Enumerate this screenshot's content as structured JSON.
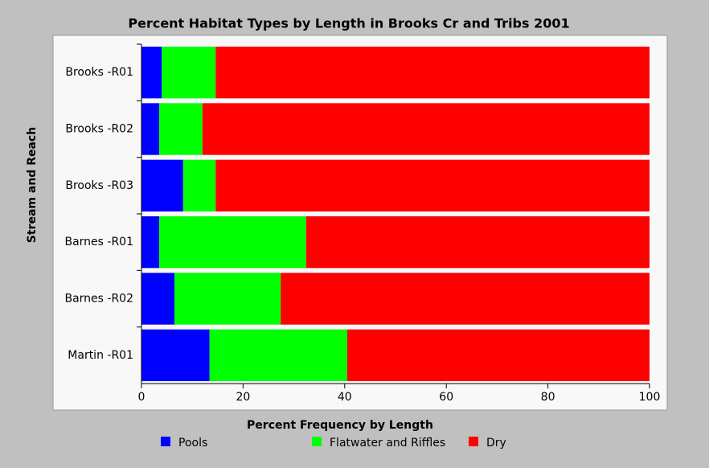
{
  "chart_data": {
    "type": "stacked-barh",
    "title": "Percent Habitat Types by Length in Brooks Cr and Tribs 2001",
    "x_label": "Percent Frequency by Length",
    "y_label": "Stream and Reach",
    "categories": [
      "Brooks -R01",
      "Brooks -R02",
      "Brooks -R03",
      "Barnes -R01",
      "Barnes -R02",
      "Martin -R01"
    ],
    "series": [
      {
        "name": "Pools",
        "color": "#0000ff",
        "values": [
          4,
          3.5,
          8.2,
          3.5,
          6.5,
          13.4
        ]
      },
      {
        "name": "Flatwater and Riffles",
        "color": "#00ff00",
        "values": [
          10.6,
          8.5,
          6.4,
          28.9,
          20.9,
          27.1
        ]
      },
      {
        "name": "Dry",
        "color": "#ff0000",
        "values": [
          85.4,
          88,
          85.4,
          67.6,
          72.6,
          59.5
        ]
      }
    ],
    "xlim": [
      0,
      100
    ],
    "xticks": [
      0,
      20,
      40,
      60,
      80,
      100
    ],
    "legend": "bottom"
  }
}
